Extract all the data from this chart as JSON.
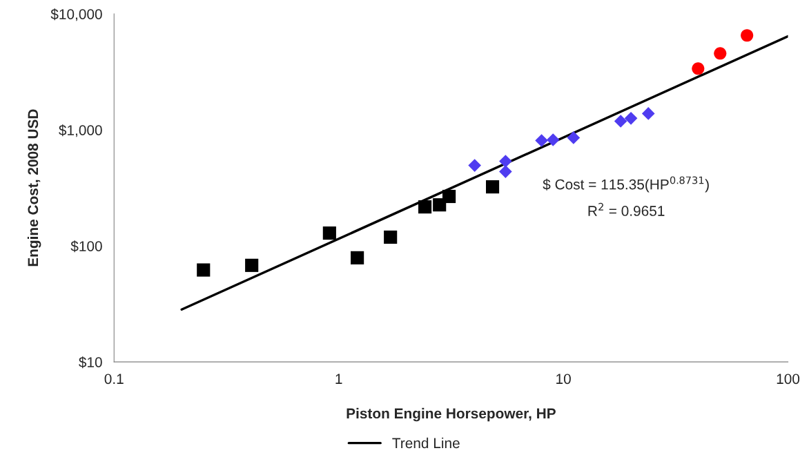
{
  "chart_data": {
    "type": "scatter",
    "xlabel": "Piston Engine Horsepower, HP",
    "ylabel": "Engine Cost, 2008 USD",
    "log": "xy",
    "grid": false,
    "legend": "bottom",
    "xlim": [
      0.1,
      100
    ],
    "xticks": [
      0.1,
      1,
      10,
      100
    ],
    "ylim": [
      10,
      10000
    ],
    "yticks": [
      {
        "value": 10,
        "label": "$10"
      },
      {
        "value": 100,
        "label": "$100"
      },
      {
        "value": 1000,
        "label": "$1,000"
      },
      {
        "value": 10000,
        "label": "$10,000"
      }
    ],
    "annotations": [
      "$ Cost = 115.35(HP$^{0.8731}$)",
      "R$^{2}$ = 0.9651"
    ],
    "series": [
      {
        "color": "#000000",
        "marker": "square",
        "x": [
          0.25,
          0.41,
          0.91,
          1.21,
          1.7,
          2.42,
          2.81,
          3.1,
          4.84
        ],
        "values": [
          62,
          68,
          129,
          79,
          119,
          217,
          226,
          267,
          323
        ]
      },
      {
        "color": "#4f3cf0",
        "marker": "diamond",
        "x": [
          4.03,
          5.53,
          5.53,
          8.0,
          9.0,
          11.1,
          18.0,
          20.0,
          23.9
        ],
        "values": [
          494,
          537,
          437,
          811,
          821,
          857,
          1190,
          1259,
          1385
        ]
      },
      {
        "color": "#ff0000",
        "marker": "circle",
        "x": [
          39.8,
          49.9,
          65.7
        ],
        "values": [
          3380,
          4570,
          6530
        ]
      },
      {
        "name": "Trend Line",
        "type": "line",
        "color": "#000000",
        "marker": "none",
        "line_style": "solid",
        "x": [
          0.2,
          100
        ],
        "values": [
          28.3,
          6414
        ]
      }
    ]
  }
}
